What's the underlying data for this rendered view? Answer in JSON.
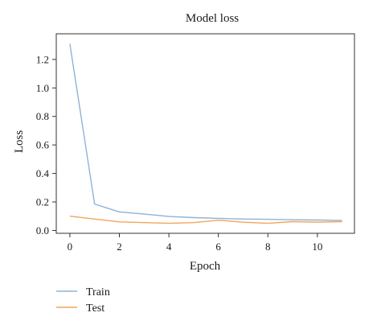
{
  "chart_data": {
    "type": "line",
    "title": "Model loss",
    "xlabel": "Epoch",
    "ylabel": "Loss",
    "xlim": [
      -0.55,
      11.5
    ],
    "ylim": [
      -0.02,
      1.38
    ],
    "x_ticks": [
      0,
      2,
      4,
      6,
      8,
      10
    ],
    "y_ticks": [
      0.0,
      0.2,
      0.4,
      0.6,
      0.8,
      1.0,
      1.2
    ],
    "y_tick_labels": [
      "0.0",
      "0.2",
      "0.4",
      "0.6",
      "0.8",
      "1.0",
      "1.2"
    ],
    "x_tick_labels": [
      "0",
      "2",
      "4",
      "6",
      "8",
      "10"
    ],
    "grid": false,
    "legend_position": "bottom-left, outside plot",
    "series": [
      {
        "name": "Train",
        "color": "#8fb3d6",
        "x": [
          0,
          1,
          2,
          3,
          4,
          5,
          6,
          7,
          8,
          9,
          10,
          11
        ],
        "y": [
          1.31,
          0.185,
          0.13,
          0.115,
          0.098,
          0.09,
          0.085,
          0.08,
          0.078,
          0.075,
          0.073,
          0.07
        ]
      },
      {
        "name": "Test",
        "color": "#f2a55c",
        "x": [
          0,
          1,
          2,
          3,
          4,
          5,
          6,
          7,
          8,
          9,
          10,
          11
        ],
        "y": [
          0.1,
          0.08,
          0.06,
          0.055,
          0.05,
          0.055,
          0.072,
          0.058,
          0.05,
          0.062,
          0.058,
          0.062
        ]
      }
    ]
  }
}
